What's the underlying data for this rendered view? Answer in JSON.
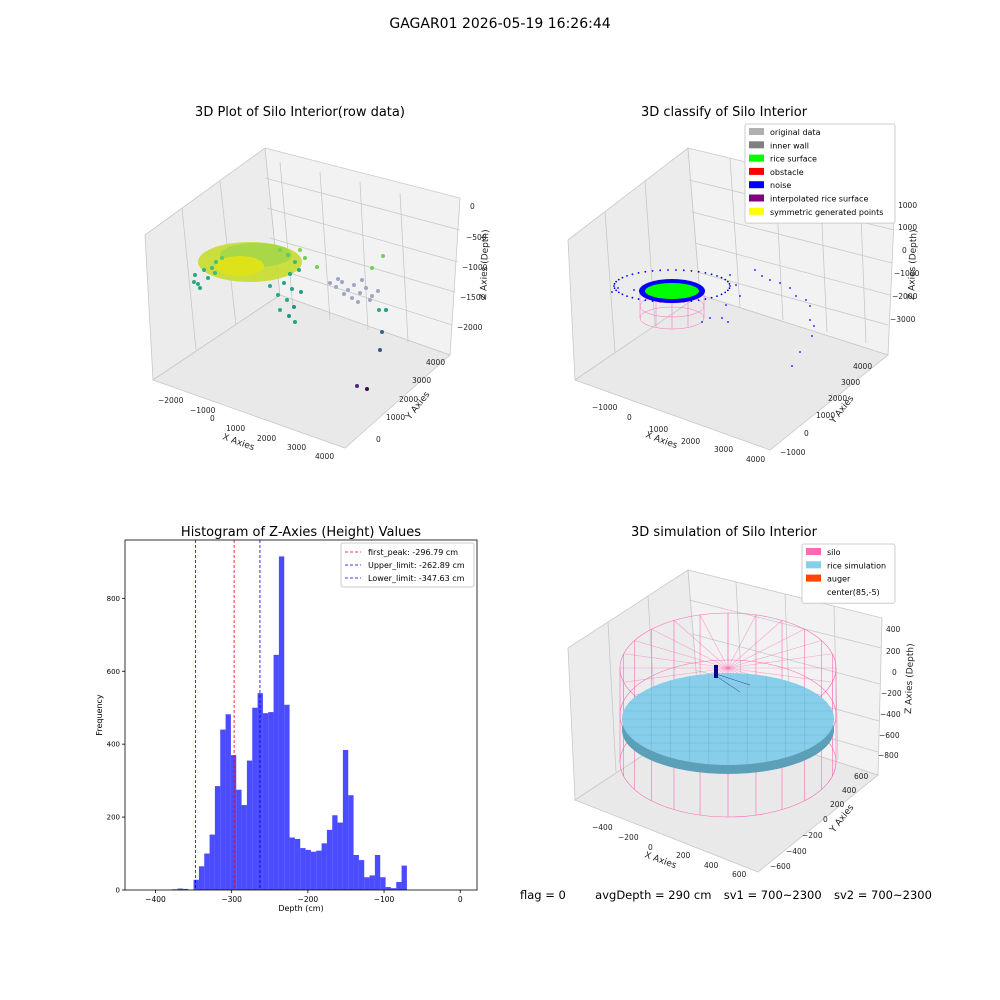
{
  "figure": {
    "suptitle": "GAGAR01 2026-05-19 16:26:44",
    "status": {
      "flag": "flag = 0",
      "avg_depth": "avgDepth = 290 cm",
      "sv1": "sv1 = 700~2300",
      "sv2": "sv2 = 700~2300"
    }
  },
  "chart_data": [
    {
      "type": "scatter",
      "title": "3D Plot of Silo Interior(row data)",
      "xlabel": "X Axies",
      "ylabel": "Y Axies",
      "zlabel": "Z Axies (Depth)",
      "x_ticks": [
        "−2000",
        "−1000",
        "0",
        "1000",
        "2000",
        "3000",
        "4000"
      ],
      "y_ticks": [
        "0",
        "1000",
        "2000",
        "3000",
        "4000"
      ],
      "z_ticks": [
        "0",
        "−500",
        "−1000",
        "−1500",
        "−2000"
      ],
      "colormap": "viridis",
      "grid": true
    },
    {
      "type": "scatter",
      "title": "3D classify of Silo Interior",
      "xlabel": "X Axies",
      "ylabel": "Y Axies",
      "zlabel": "Z Axies (Depth)",
      "x_ticks": [
        "−1000",
        "0",
        "1000",
        "2000",
        "3000",
        "4000"
      ],
      "y_ticks": [
        "−1000",
        "0",
        "1000",
        "2000",
        "3000",
        "4000"
      ],
      "z_ticks": [
        "1000",
        "0",
        "−1000",
        "−2000",
        "−3000"
      ],
      "legend_position": "top-right",
      "legend": [
        {
          "label": "original data",
          "color": "#b0b0b0"
        },
        {
          "label": "inner wall",
          "color": "#808080"
        },
        {
          "label": "rice surface",
          "color": "#00ff00"
        },
        {
          "label": "obstacle",
          "color": "#ff0000"
        },
        {
          "label": "noise",
          "color": "#0000ff"
        },
        {
          "label": "interpolated rice surface",
          "color": "#800080"
        },
        {
          "label": "symmetric generated points",
          "color": "#ffff00"
        }
      ],
      "grid": true
    },
    {
      "type": "bar",
      "title": "Histogram of Z-Axies (Height) Values",
      "xlabel": "Depth (cm)",
      "ylabel": "Frequency",
      "xlim": [
        -440,
        22
      ],
      "ylim": [
        0,
        960
      ],
      "x_ticks": [
        -400,
        -300,
        -200,
        -100,
        0
      ],
      "x_tick_labels": [
        "−400",
        "−300",
        "−200",
        "−100",
        "0"
      ],
      "y_ticks": [
        0,
        200,
        400,
        600,
        800
      ],
      "y_tick_labels": [
        "0",
        "200",
        "400",
        "600",
        "800"
      ],
      "bar_color": "#0000ff",
      "bin_start": -420,
      "bin_width": 7,
      "values": [
        0,
        0,
        0,
        0,
        0,
        0,
        2,
        4,
        3,
        0,
        28,
        65,
        100,
        152,
        285,
        440,
        482,
        370,
        275,
        233,
        355,
        500,
        540,
        485,
        488,
        645,
        915,
        508,
        144,
        140,
        115,
        110,
        105,
        108,
        128,
        165,
        205,
        185,
        384,
        260,
        96,
        82,
        35,
        40,
        96,
        35,
        8,
        5,
        22,
        67
      ],
      "vlines": [
        {
          "label": "first_peak: -296.79 cm",
          "x": -296.79,
          "color": "#ff0000"
        },
        {
          "label": "Upper_limit: -262.89 cm",
          "x": -262.89,
          "color": "#0000cc"
        },
        {
          "label": "Lower_limit: -347.63 cm",
          "x": -347.63,
          "color": "#0000cc"
        }
      ],
      "legend_position": "top-right",
      "grid": false
    },
    {
      "type": "scatter",
      "title": "3D simulation of Silo Interior",
      "xlabel": "X Axies",
      "ylabel": "Y Axies",
      "zlabel": "Z Axies (Depth)",
      "x_ticks": [
        "−400",
        "−200",
        "0",
        "200",
        "400",
        "600"
      ],
      "y_ticks": [
        "−600",
        "−400",
        "−200",
        "0",
        "200",
        "400",
        "600"
      ],
      "z_ticks": [
        "400",
        "200",
        "0",
        "−200",
        "−400",
        "−600",
        "−800"
      ],
      "legend_position": "top-right",
      "legend": [
        {
          "label": "silo",
          "color": "#ff69b4"
        },
        {
          "label": "rice simulation",
          "color": "#87ceeb"
        },
        {
          "label": "auger",
          "color": "#ff4500"
        },
        {
          "label": "center(85,-5)",
          "color": "#ffffff"
        }
      ],
      "grid": true
    }
  ]
}
